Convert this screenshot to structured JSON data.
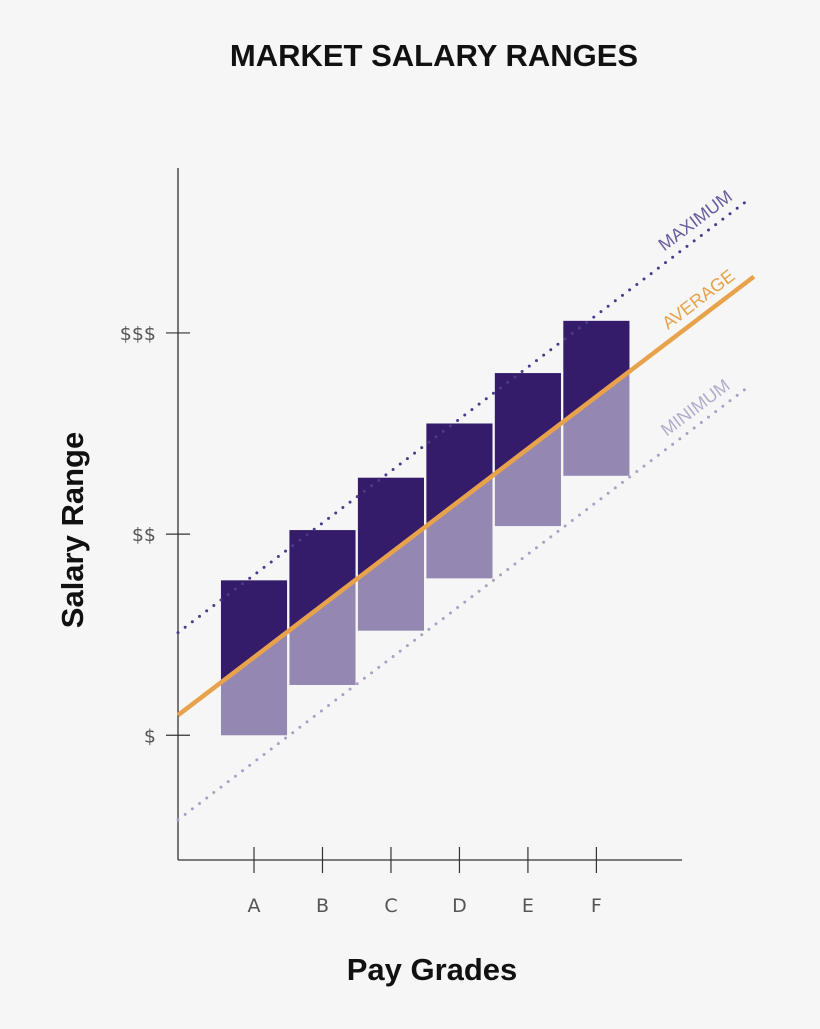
{
  "chart_data": {
    "type": "bar",
    "title": "MARKET SALARY RANGES",
    "xlabel": "Pay Grades",
    "ylabel": "Salary Range",
    "categories": [
      "A",
      "B",
      "C",
      "D",
      "E",
      "F"
    ],
    "y_ticks": [
      {
        "value": 1,
        "label": "$"
      },
      {
        "value": 2,
        "label": "$$"
      },
      {
        "value": 3,
        "label": "$$$"
      }
    ],
    "ylim": [
      0.38,
      3.82
    ],
    "xlim": [
      -1.11,
      6.25
    ],
    "grid": false,
    "ranges": [
      {
        "category": "A",
        "min": 1.0,
        "max": 1.77
      },
      {
        "category": "B",
        "min": 1.25,
        "max": 2.02
      },
      {
        "category": "C",
        "min": 1.52,
        "max": 2.28
      },
      {
        "category": "D",
        "min": 1.78,
        "max": 2.55
      },
      {
        "category": "E",
        "min": 2.04,
        "max": 2.8
      },
      {
        "category": "F",
        "min": 2.29,
        "max": 3.06
      }
    ],
    "lines": [
      {
        "name": "MAXIMUM",
        "style": "dotted",
        "color": "#4b3a8a",
        "label_color": "#6a5c9e",
        "from": [
          -1.11,
          1.51
        ],
        "to": [
          7.25,
          3.67
        ]
      },
      {
        "name": "AVERAGE",
        "style": "solid",
        "color": "#e8a24b",
        "label_color": "#e8a24b",
        "from": [
          -1.11,
          1.1
        ],
        "to": [
          7.3,
          3.28
        ]
      },
      {
        "name": "MINIMUM",
        "style": "dotted",
        "color": "#a9a0c4",
        "label_color": "#b3abcc",
        "from": [
          -1.11,
          0.58
        ],
        "to": [
          7.25,
          2.74
        ]
      }
    ],
    "colors": {
      "above_average": "#341c6a",
      "below_average": "#9487b1",
      "axis": "#333333"
    }
  }
}
